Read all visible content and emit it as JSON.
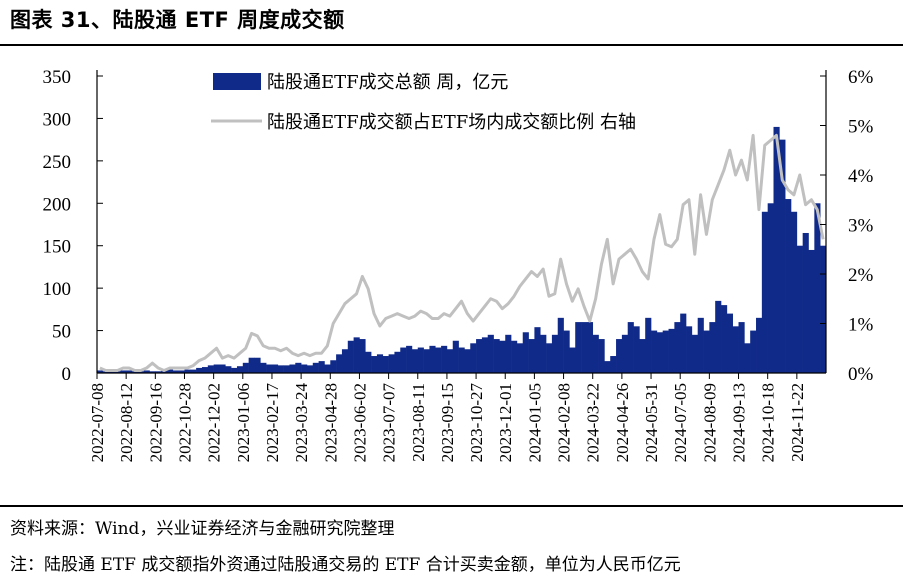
{
  "header": {
    "title": "图表 31、陆股通 ETF 周度成交额"
  },
  "footer": {
    "source": "资料来源：Wind，兴业证券经济与金融研究院整理",
    "note": "注：陆股通 ETF 成交额指外资通过陆股通交易的 ETF 合计买卖金额，单位为人民币亿元"
  },
  "colors": {
    "bar": "#102a8a",
    "line": "#c0c0c0",
    "axis": "#000000"
  },
  "chart_data": {
    "type": "bar",
    "left_axis": {
      "min": 0,
      "max": 350,
      "ticks": [
        "0",
        "50",
        "100",
        "150",
        "200",
        "250",
        "300",
        "350"
      ]
    },
    "right_axis": {
      "min": 0,
      "max": 6,
      "ticks": [
        "0%",
        "1%",
        "2%",
        "3%",
        "4%",
        "5%",
        "6%"
      ]
    },
    "x_tick_labels": [
      "2022-07-08",
      "2022-08-12",
      "2022-09-16",
      "2022-10-28",
      "2022-12-02",
      "2023-01-06",
      "2023-02-17",
      "2023-03-24",
      "2023-04-28",
      "2023-06-02",
      "2023-07-07",
      "2023-08-11",
      "2023-09-15",
      "2023-10-27",
      "2023-12-01",
      "2024-01-05",
      "2024-02-08",
      "2024-03-22",
      "2024-04-26",
      "2024-05-31",
      "2024-07-05",
      "2024-08-09",
      "2024-09-13",
      "2024-10-18",
      "2024-11-22"
    ],
    "x_tick_every": 5,
    "series": [
      {
        "name": "陆股通ETF成交总额 周，亿元",
        "kind": "bar",
        "axis": "left",
        "values": [
          3,
          2,
          2,
          2,
          3,
          3,
          2,
          2,
          3,
          2,
          2,
          3,
          4,
          3,
          3,
          4,
          4,
          6,
          7,
          9,
          10,
          10,
          8,
          6,
          8,
          12,
          18,
          18,
          12,
          10,
          10,
          9,
          9,
          10,
          12,
          10,
          9,
          12,
          14,
          10,
          15,
          22,
          28,
          38,
          42,
          40,
          25,
          20,
          22,
          20,
          22,
          25,
          30,
          32,
          28,
          30,
          28,
          32,
          30,
          32,
          28,
          38,
          30,
          28,
          35,
          40,
          42,
          45,
          40,
          38,
          45,
          38,
          35,
          48,
          40,
          54,
          45,
          35,
          45,
          65,
          50,
          30,
          60,
          60,
          60,
          45,
          40,
          14,
          20,
          40,
          45,
          60,
          55,
          40,
          65,
          50,
          48,
          50,
          52,
          60,
          70,
          55,
          45,
          65,
          50,
          60,
          85,
          80,
          70,
          55,
          60,
          35,
          50,
          65,
          190,
          200,
          290,
          275,
          205,
          190,
          150,
          165,
          145,
          200,
          150
        ]
      },
      {
        "name": "陆股通ETF成交额占ETF场内成交额比例 右轴",
        "kind": "line",
        "axis": "right",
        "values": [
          0.1,
          0.05,
          0.05,
          0.05,
          0.1,
          0.1,
          0.05,
          0.05,
          0.1,
          0.2,
          0.1,
          0.05,
          0.1,
          0.1,
          0.1,
          0.1,
          0.15,
          0.25,
          0.3,
          0.4,
          0.5,
          0.3,
          0.35,
          0.3,
          0.4,
          0.5,
          0.8,
          0.75,
          0.55,
          0.5,
          0.5,
          0.45,
          0.5,
          0.4,
          0.35,
          0.4,
          0.35,
          0.4,
          0.4,
          0.55,
          1.0,
          1.2,
          1.4,
          1.5,
          1.6,
          1.95,
          1.7,
          1.2,
          0.95,
          1.1,
          1.15,
          1.2,
          1.15,
          1.1,
          1.15,
          1.25,
          1.2,
          1.1,
          1.1,
          1.2,
          1.15,
          1.3,
          1.45,
          1.2,
          1.05,
          1.2,
          1.35,
          1.5,
          1.45,
          1.3,
          1.4,
          1.55,
          1.75,
          1.9,
          2.05,
          1.95,
          2.1,
          1.55,
          1.6,
          2.3,
          1.8,
          1.45,
          1.7,
          1.35,
          1.05,
          1.5,
          2.2,
          2.7,
          1.8,
          2.3,
          2.4,
          2.5,
          2.3,
          2.05,
          1.9,
          2.7,
          3.2,
          2.6,
          2.55,
          2.7,
          3.4,
          3.5,
          2.4,
          3.6,
          2.8,
          3.5,
          3.8,
          4.1,
          4.5,
          4.0,
          4.3,
          3.9,
          4.8,
          3.3,
          4.6,
          4.7,
          4.8,
          3.9,
          3.7,
          3.6,
          4.0,
          3.4,
          3.5,
          3.3,
          2.7
        ]
      }
    ]
  }
}
